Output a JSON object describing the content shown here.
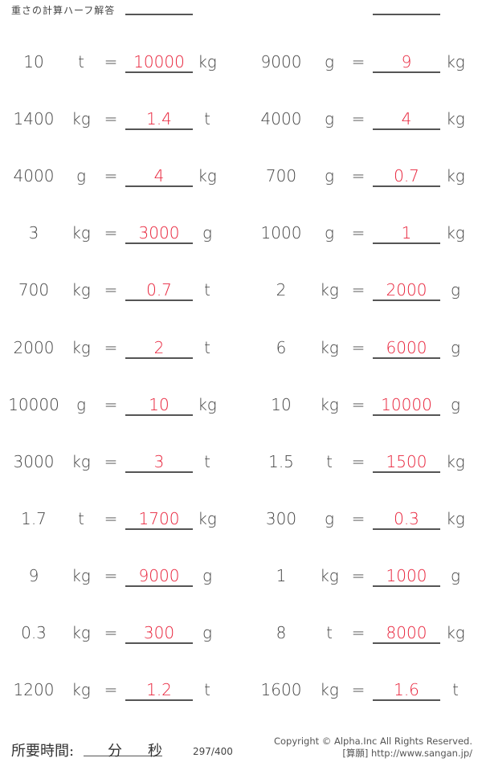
{
  "header": {
    "title": "重さの計算ハーフ解答"
  },
  "equals": "=",
  "left": [
    {
      "value": "10",
      "unit": "t",
      "answer": "10000",
      "answer_unit": "kg"
    },
    {
      "value": "1400",
      "unit": "kg",
      "answer": "1.4",
      "answer_unit": "t"
    },
    {
      "value": "4000",
      "unit": "g",
      "answer": "4",
      "answer_unit": "kg"
    },
    {
      "value": "3",
      "unit": "kg",
      "answer": "3000",
      "answer_unit": "g"
    },
    {
      "value": "700",
      "unit": "kg",
      "answer": "0.7",
      "answer_unit": "t"
    },
    {
      "value": "2000",
      "unit": "kg",
      "answer": "2",
      "answer_unit": "t"
    },
    {
      "value": "10000",
      "unit": "g",
      "answer": "10",
      "answer_unit": "kg"
    },
    {
      "value": "3000",
      "unit": "kg",
      "answer": "3",
      "answer_unit": "t"
    },
    {
      "value": "1.7",
      "unit": "t",
      "answer": "1700",
      "answer_unit": "kg"
    },
    {
      "value": "9",
      "unit": "kg",
      "answer": "9000",
      "answer_unit": "g"
    },
    {
      "value": "0.3",
      "unit": "kg",
      "answer": "300",
      "answer_unit": "g"
    },
    {
      "value": "1200",
      "unit": "kg",
      "answer": "1.2",
      "answer_unit": "t"
    }
  ],
  "right": [
    {
      "value": "9000",
      "unit": "g",
      "answer": "9",
      "answer_unit": "kg"
    },
    {
      "value": "4000",
      "unit": "g",
      "answer": "4",
      "answer_unit": "kg"
    },
    {
      "value": "700",
      "unit": "g",
      "answer": "0.7",
      "answer_unit": "kg"
    },
    {
      "value": "1000",
      "unit": "g",
      "answer": "1",
      "answer_unit": "kg"
    },
    {
      "value": "2",
      "unit": "kg",
      "answer": "2000",
      "answer_unit": "g"
    },
    {
      "value": "6",
      "unit": "kg",
      "answer": "6000",
      "answer_unit": "g"
    },
    {
      "value": "10",
      "unit": "kg",
      "answer": "10000",
      "answer_unit": "g"
    },
    {
      "value": "1.5",
      "unit": "t",
      "answer": "1500",
      "answer_unit": "kg"
    },
    {
      "value": "300",
      "unit": "g",
      "answer": "0.3",
      "answer_unit": "kg"
    },
    {
      "value": "1",
      "unit": "kg",
      "answer": "1000",
      "answer_unit": "g"
    },
    {
      "value": "8",
      "unit": "t",
      "answer": "8000",
      "answer_unit": "kg"
    },
    {
      "value": "1600",
      "unit": "kg",
      "answer": "1.6",
      "answer_unit": "t"
    }
  ],
  "footer": {
    "time_label": "所要時間:",
    "minutes": "分",
    "seconds": "秒",
    "page": "297/400",
    "copyright": "Copyright © Alpha.Inc All Rights Reserved.",
    "site": "[算願] http://www.sangan.jp/"
  },
  "colors": {
    "answer": "#e8223a"
  }
}
